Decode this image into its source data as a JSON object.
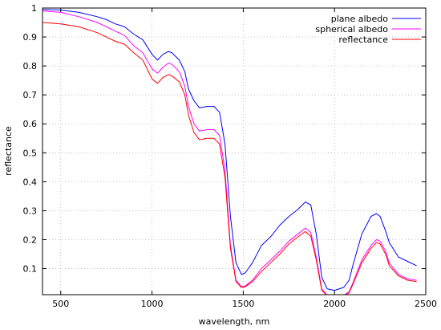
{
  "chart_data": {
    "type": "line",
    "xlabel": "wavelength, nm",
    "ylabel": "reflectance",
    "xlim": [
      400,
      2500
    ],
    "ylim": [
      0.01,
      1.0
    ],
    "xticks": [
      500,
      1000,
      1500,
      2000,
      2500
    ],
    "yticks": [
      0.1,
      0.2,
      0.3,
      0.4,
      0.5,
      0.6,
      0.7,
      0.8,
      0.9,
      1
    ],
    "xtick_labels": [
      "500",
      "1000",
      "1500",
      "2000",
      "2500"
    ],
    "ytick_labels": [
      "0.1",
      "0.2",
      "0.3",
      "0.4",
      "0.5",
      "0.6",
      "0.7",
      "0.8",
      "0.9",
      "1"
    ],
    "grid": true,
    "legend_position": "top-right",
    "series": [
      {
        "name": "plane albedo",
        "color": "#0000ff",
        "x": [
          400,
          500,
          600,
          700,
          750,
          800,
          850,
          900,
          950,
          1000,
          1030,
          1060,
          1090,
          1110,
          1150,
          1180,
          1200,
          1230,
          1260,
          1300,
          1340,
          1370,
          1400,
          1430,
          1460,
          1490,
          1510,
          1550,
          1600,
          1650,
          1700,
          1750,
          1800,
          1840,
          1870,
          1900,
          1930,
          1960,
          2000,
          2050,
          2080,
          2100,
          2150,
          2200,
          2230,
          2250,
          2280,
          2300,
          2350,
          2400,
          2450
        ],
        "y": [
          0.995,
          0.993,
          0.985,
          0.97,
          0.96,
          0.945,
          0.935,
          0.91,
          0.89,
          0.84,
          0.82,
          0.84,
          0.85,
          0.845,
          0.82,
          0.78,
          0.72,
          0.68,
          0.655,
          0.66,
          0.66,
          0.64,
          0.53,
          0.28,
          0.12,
          0.08,
          0.085,
          0.12,
          0.18,
          0.21,
          0.25,
          0.28,
          0.305,
          0.33,
          0.32,
          0.22,
          0.07,
          0.03,
          0.025,
          0.035,
          0.06,
          0.11,
          0.22,
          0.28,
          0.29,
          0.28,
          0.23,
          0.19,
          0.14,
          0.125,
          0.11
        ]
      },
      {
        "name": "spherical albedo",
        "color": "#ff00ff",
        "x": [
          400,
          500,
          600,
          700,
          750,
          800,
          850,
          900,
          950,
          1000,
          1030,
          1060,
          1090,
          1110,
          1150,
          1180,
          1200,
          1230,
          1260,
          1300,
          1340,
          1370,
          1400,
          1430,
          1460,
          1490,
          1510,
          1550,
          1600,
          1650,
          1700,
          1750,
          1800,
          1840,
          1870,
          1900,
          1930,
          1960,
          2000,
          2050,
          2080,
          2100,
          2150,
          2200,
          2230,
          2250,
          2280,
          2300,
          2350,
          2400,
          2450
        ],
        "y": [
          0.99,
          0.985,
          0.97,
          0.95,
          0.935,
          0.92,
          0.905,
          0.87,
          0.845,
          0.79,
          0.775,
          0.795,
          0.81,
          0.805,
          0.78,
          0.73,
          0.66,
          0.6,
          0.575,
          0.58,
          0.58,
          0.56,
          0.44,
          0.18,
          0.06,
          0.038,
          0.04,
          0.06,
          0.1,
          0.13,
          0.16,
          0.195,
          0.22,
          0.24,
          0.225,
          0.14,
          0.03,
          0.008,
          0.004,
          0.008,
          0.02,
          0.05,
          0.13,
          0.18,
          0.2,
          0.195,
          0.16,
          0.12,
          0.08,
          0.065,
          0.06
        ]
      },
      {
        "name": "reflectance",
        "color": "#ff0000",
        "x": [
          400,
          500,
          600,
          700,
          750,
          800,
          850,
          900,
          950,
          1000,
          1030,
          1060,
          1090,
          1110,
          1150,
          1180,
          1200,
          1230,
          1260,
          1300,
          1340,
          1370,
          1400,
          1430,
          1460,
          1490,
          1510,
          1550,
          1600,
          1650,
          1700,
          1750,
          1800,
          1840,
          1870,
          1900,
          1930,
          1960,
          2000,
          2050,
          2080,
          2100,
          2150,
          2200,
          2230,
          2250,
          2280,
          2300,
          2350,
          2400,
          2450
        ],
        "y": [
          0.95,
          0.945,
          0.935,
          0.915,
          0.9,
          0.885,
          0.875,
          0.845,
          0.82,
          0.755,
          0.74,
          0.76,
          0.77,
          0.765,
          0.745,
          0.7,
          0.63,
          0.57,
          0.545,
          0.55,
          0.55,
          0.53,
          0.415,
          0.17,
          0.055,
          0.035,
          0.037,
          0.055,
          0.09,
          0.12,
          0.15,
          0.185,
          0.21,
          0.228,
          0.212,
          0.13,
          0.025,
          0.006,
          0.003,
          0.006,
          0.016,
          0.045,
          0.12,
          0.17,
          0.19,
          0.185,
          0.15,
          0.11,
          0.075,
          0.06,
          0.055
        ]
      }
    ]
  }
}
